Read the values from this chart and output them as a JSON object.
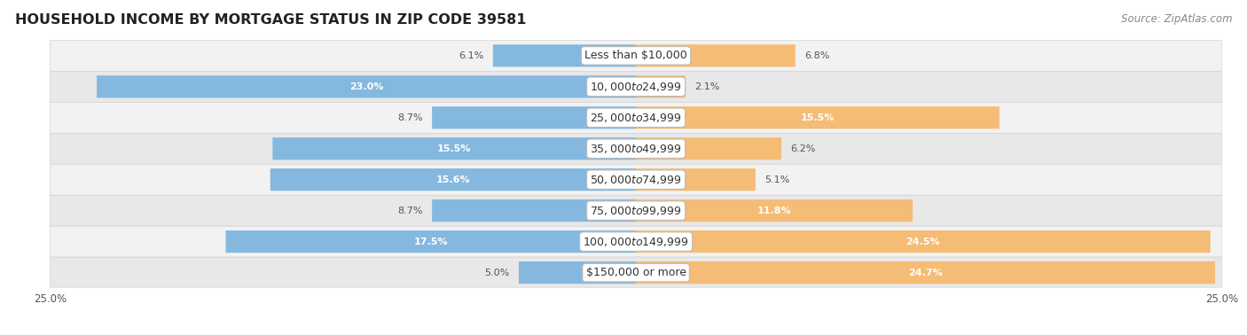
{
  "title": "HOUSEHOLD INCOME BY MORTGAGE STATUS IN ZIP CODE 39581",
  "source": "Source: ZipAtlas.com",
  "categories": [
    "Less than $10,000",
    "$10,000 to $24,999",
    "$25,000 to $34,999",
    "$35,000 to $49,999",
    "$50,000 to $74,999",
    "$75,000 to $99,999",
    "$100,000 to $149,999",
    "$150,000 or more"
  ],
  "without_mortgage": [
    6.1,
    23.0,
    8.7,
    15.5,
    15.6,
    8.7,
    17.5,
    5.0
  ],
  "with_mortgage": [
    6.8,
    2.1,
    15.5,
    6.2,
    5.1,
    11.8,
    24.5,
    24.7
  ],
  "color_without": "#85b8df",
  "color_with": "#f5bc75",
  "row_colors": [
    "#f2f2f2",
    "#e8e8e8"
  ],
  "axis_max": 25.0,
  "title_fontsize": 11.5,
  "source_fontsize": 8.5,
  "label_fontsize": 8,
  "category_fontsize": 9,
  "axis_label_fontsize": 8.5,
  "bar_height": 0.72
}
